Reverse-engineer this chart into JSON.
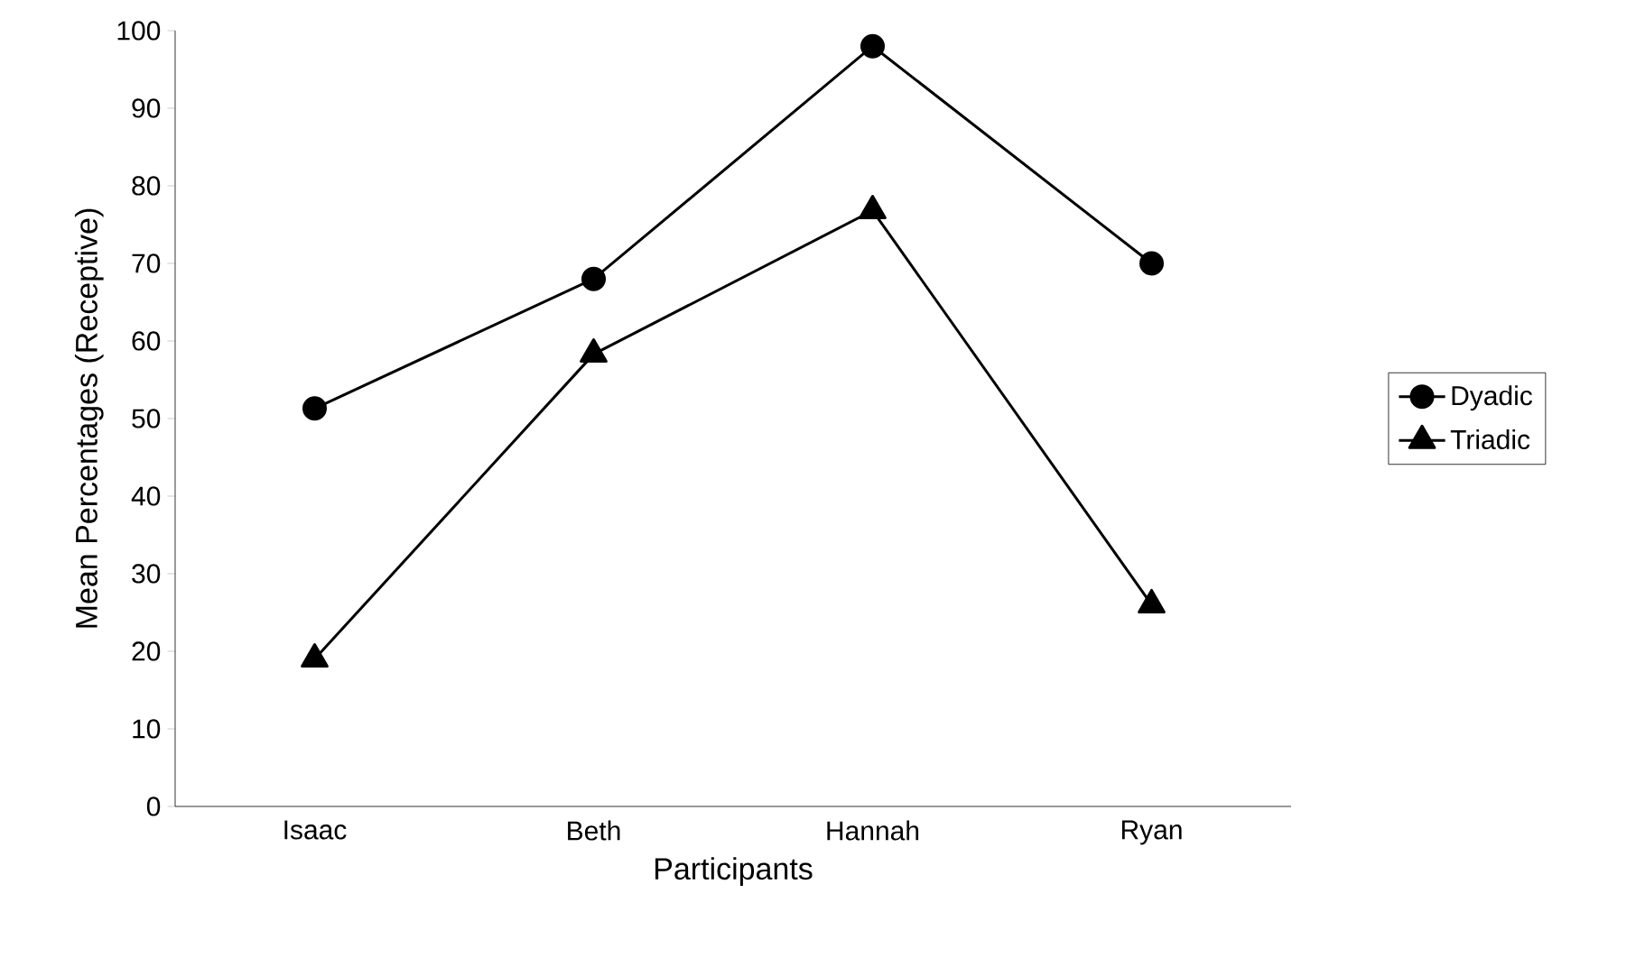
{
  "chart_data": {
    "type": "line",
    "xlabel": "Participants",
    "ylabel": "Mean Percentages (Receptive)",
    "categories": [
      "Isaac",
      "Beth",
      "Hannah",
      "Ryan"
    ],
    "series": [
      {
        "name": "Dyadic",
        "color": "#000000",
        "marker": "circle",
        "values": [
          51.3,
          68,
          98,
          70
        ]
      },
      {
        "name": "Triadic",
        "color": "#000000",
        "marker": "triangle",
        "values": [
          19,
          58.3,
          76.8,
          26
        ]
      }
    ],
    "ylim": [
      0,
      100
    ],
    "yticks": [
      0,
      10,
      20,
      30,
      40,
      50,
      60,
      70,
      80,
      90,
      100
    ],
    "grid": false,
    "legend": "right",
    "line_style": "solid"
  }
}
